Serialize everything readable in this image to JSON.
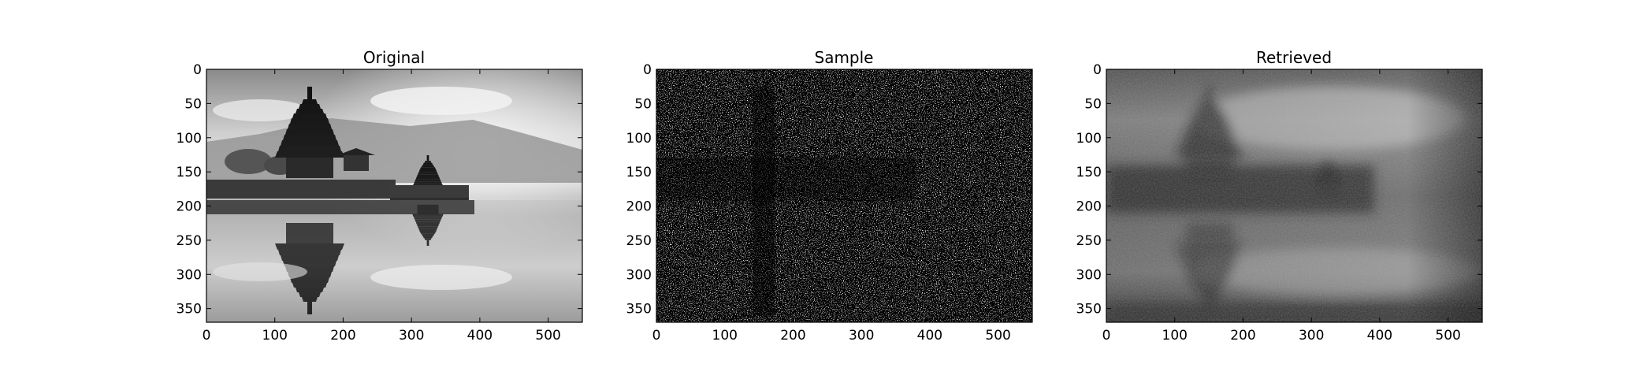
{
  "chart_data": [
    {
      "type": "heatmap",
      "title": "Original",
      "xlabel": "",
      "ylabel": "",
      "xlim": [
        0,
        550
      ],
      "ylim": [
        370,
        0
      ],
      "xticks": [
        0,
        100,
        200,
        300,
        400,
        500
      ],
      "yticks": [
        0,
        50,
        100,
        150,
        200,
        250,
        300,
        350
      ],
      "colormap": "gray",
      "content": "grayscale image"
    },
    {
      "type": "heatmap",
      "title": "Sample",
      "xlabel": "",
      "ylabel": "",
      "xlim": [
        0,
        550
      ],
      "ylim": [
        370,
        0
      ],
      "xticks": [
        0,
        100,
        200,
        300,
        400,
        500
      ],
      "yticks": [
        0,
        50,
        100,
        150,
        200,
        250,
        300,
        350
      ],
      "colormap": "gray",
      "content": "sparse random pixel sample"
    },
    {
      "type": "heatmap",
      "title": "Retrieved",
      "xlabel": "",
      "ylabel": "",
      "xlim": [
        0,
        550
      ],
      "ylim": [
        370,
        0
      ],
      "xticks": [
        0,
        100,
        200,
        300,
        400,
        500
      ],
      "yticks": [
        0,
        50,
        100,
        150,
        200,
        250,
        300,
        350
      ],
      "colormap": "gray",
      "content": "reconstructed grayscale image"
    }
  ]
}
